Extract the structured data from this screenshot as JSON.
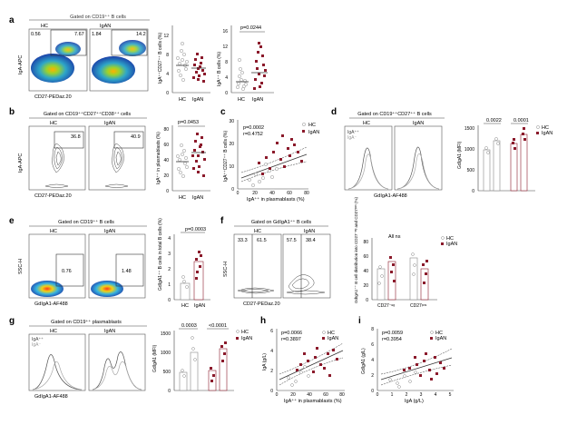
{
  "figure": {
    "panels": {
      "a": {
        "label": "a",
        "gate": "Gated on CD19⁺⁺ B cells",
        "flow": {
          "groups": [
            "HC",
            "IgAN"
          ],
          "quadrant_values": [
            "0.56",
            "7.67",
            "1.84",
            "14.2"
          ],
          "x_axis": "CD27-PEDaz.20",
          "y_axis": "IgA-APC"
        },
        "plot1": {
          "y_label": "IgA⁺⁺CD27⁺⁺ B cells (%)",
          "ticks": [
            "0",
            "4",
            "8",
            "12"
          ]
        },
        "plot2": {
          "y_label": "IgA⁺⁺ B cells (%)",
          "p_value": "p=0.0244",
          "ticks": [
            "0",
            "4",
            "8",
            "12",
            "16"
          ]
        }
      },
      "b": {
        "label": "b",
        "gate": "Gated on CD19⁺⁺CD27⁺⁺CD38⁺⁺ cells",
        "flow": {
          "groups": [
            "HC",
            "IgAN"
          ],
          "values": [
            "36.8",
            "40.9"
          ],
          "x_axis": "CD27-PEDaz.20",
          "y_axis": "IgA-APC"
        },
        "plot1": {
          "y_label": "IgA⁺⁺ in plasmablasts (%)",
          "p_value": "p=0.0453",
          "ticks": [
            "0",
            "20",
            "40",
            "60",
            "80"
          ]
        }
      },
      "c": {
        "label": "c",
        "stats": [
          "p=0.0002",
          "r=0.4752"
        ],
        "y_label": "IgA⁺⁺CD27⁺⁺ B cells (%)",
        "x_label": "IgA⁺⁺ in plasmablasts (%)",
        "x_ticks": [
          "0",
          "20",
          "40",
          "60",
          "80"
        ],
        "y_ticks": [
          "0",
          "10",
          "20",
          "30"
        ]
      },
      "d": {
        "label": "d",
        "gate": "Gated on CD19⁺⁺CD27⁺⁺ B cells",
        "groups": [
          "HC",
          "IgAN"
        ],
        "hist_legend": [
          "IgA⁺⁺",
          "IgA⁻"
        ],
        "x_axis": "GdIgA1-AF488",
        "bar_label": "GdIgA1 (MFI)",
        "p_values": [
          "0.0022",
          "0.0001"
        ],
        "ticks": [
          "0",
          "500",
          "1000",
          "1500"
        ]
      },
      "e": {
        "label": "e",
        "gate": "Gated on CD19⁺⁺ B cells",
        "groups": [
          "HC",
          "IgAN"
        ],
        "values": [
          "0.76",
          "1.48"
        ],
        "x_axis": "GdIgA1-AF488",
        "y_axis": "SSC-H",
        "p_value": "p=0.0003",
        "bar_label": "GdIgA1⁺⁺ B cells in total B cells (%)",
        "ticks": [
          "0",
          "1",
          "2",
          "3",
          "4"
        ]
      },
      "f": {
        "label": "f",
        "gate": "Gated on GdIgA1⁺⁺ B cells",
        "groups": [
          "HC",
          "IgAN"
        ],
        "values": [
          "33.3",
          "61.5",
          "57.5",
          "38.4"
        ],
        "x_axis": "CD27-PEDaz.20",
        "y_axis": "SSC-H",
        "bar_note": "All ns",
        "categories": [
          "CD27⁻ᵉᵍ",
          "CD27ᵖᵒˢ"
        ],
        "bar_label": "GdIgA1⁺⁺ B cell distribution into CD27⁻ᵉᵍ and CD27ᵖᵒˢ (%)",
        "ticks": [
          "0",
          "20",
          "40",
          "60",
          "80"
        ]
      },
      "g": {
        "label": "g",
        "gate": "Gated on CD19⁺⁺ plasmablasts",
        "groups": [
          "HC",
          "IgAN"
        ],
        "hist_legend": [
          "IgA⁺⁺",
          "IgA⁻"
        ],
        "x_axis": "GdIgA1-AF488",
        "bar_label": "GdIgA1 (MFI)",
        "p_values": [
          "0.0003",
          "<0.0001"
        ],
        "ticks": [
          "0",
          "500",
          "1000",
          "1500"
        ]
      },
      "h": {
        "label": "h",
        "stats": [
          "p=0.0066",
          "r=0.3897"
        ],
        "y_label": "IgA (g/L)",
        "x_label": "IgA⁺⁺ in plasmablasts (%)",
        "x_ticks": [
          "0",
          "20",
          "40",
          "60",
          "80"
        ],
        "y_ticks": [
          "0",
          "2",
          "4",
          "6"
        ]
      },
      "i": {
        "label": "i",
        "stats": [
          "p=0.0059",
          "r=0.3954"
        ],
        "y_label": "GdIgA1 (g/L)",
        "x_label": "IgA (g/L)",
        "x_ticks": [
          "0",
          "1",
          "2",
          "3",
          "4",
          "5"
        ],
        "y_ticks": [
          "0",
          "2",
          "4",
          "6",
          "8"
        ]
      }
    },
    "legend": {
      "hc": "HC",
      "igan": "IgAN"
    },
    "colors": {
      "hc": "#a8a8a8",
      "igan": "#8b1a2b",
      "axis": "#444444",
      "gate": "#444444"
    }
  }
}
